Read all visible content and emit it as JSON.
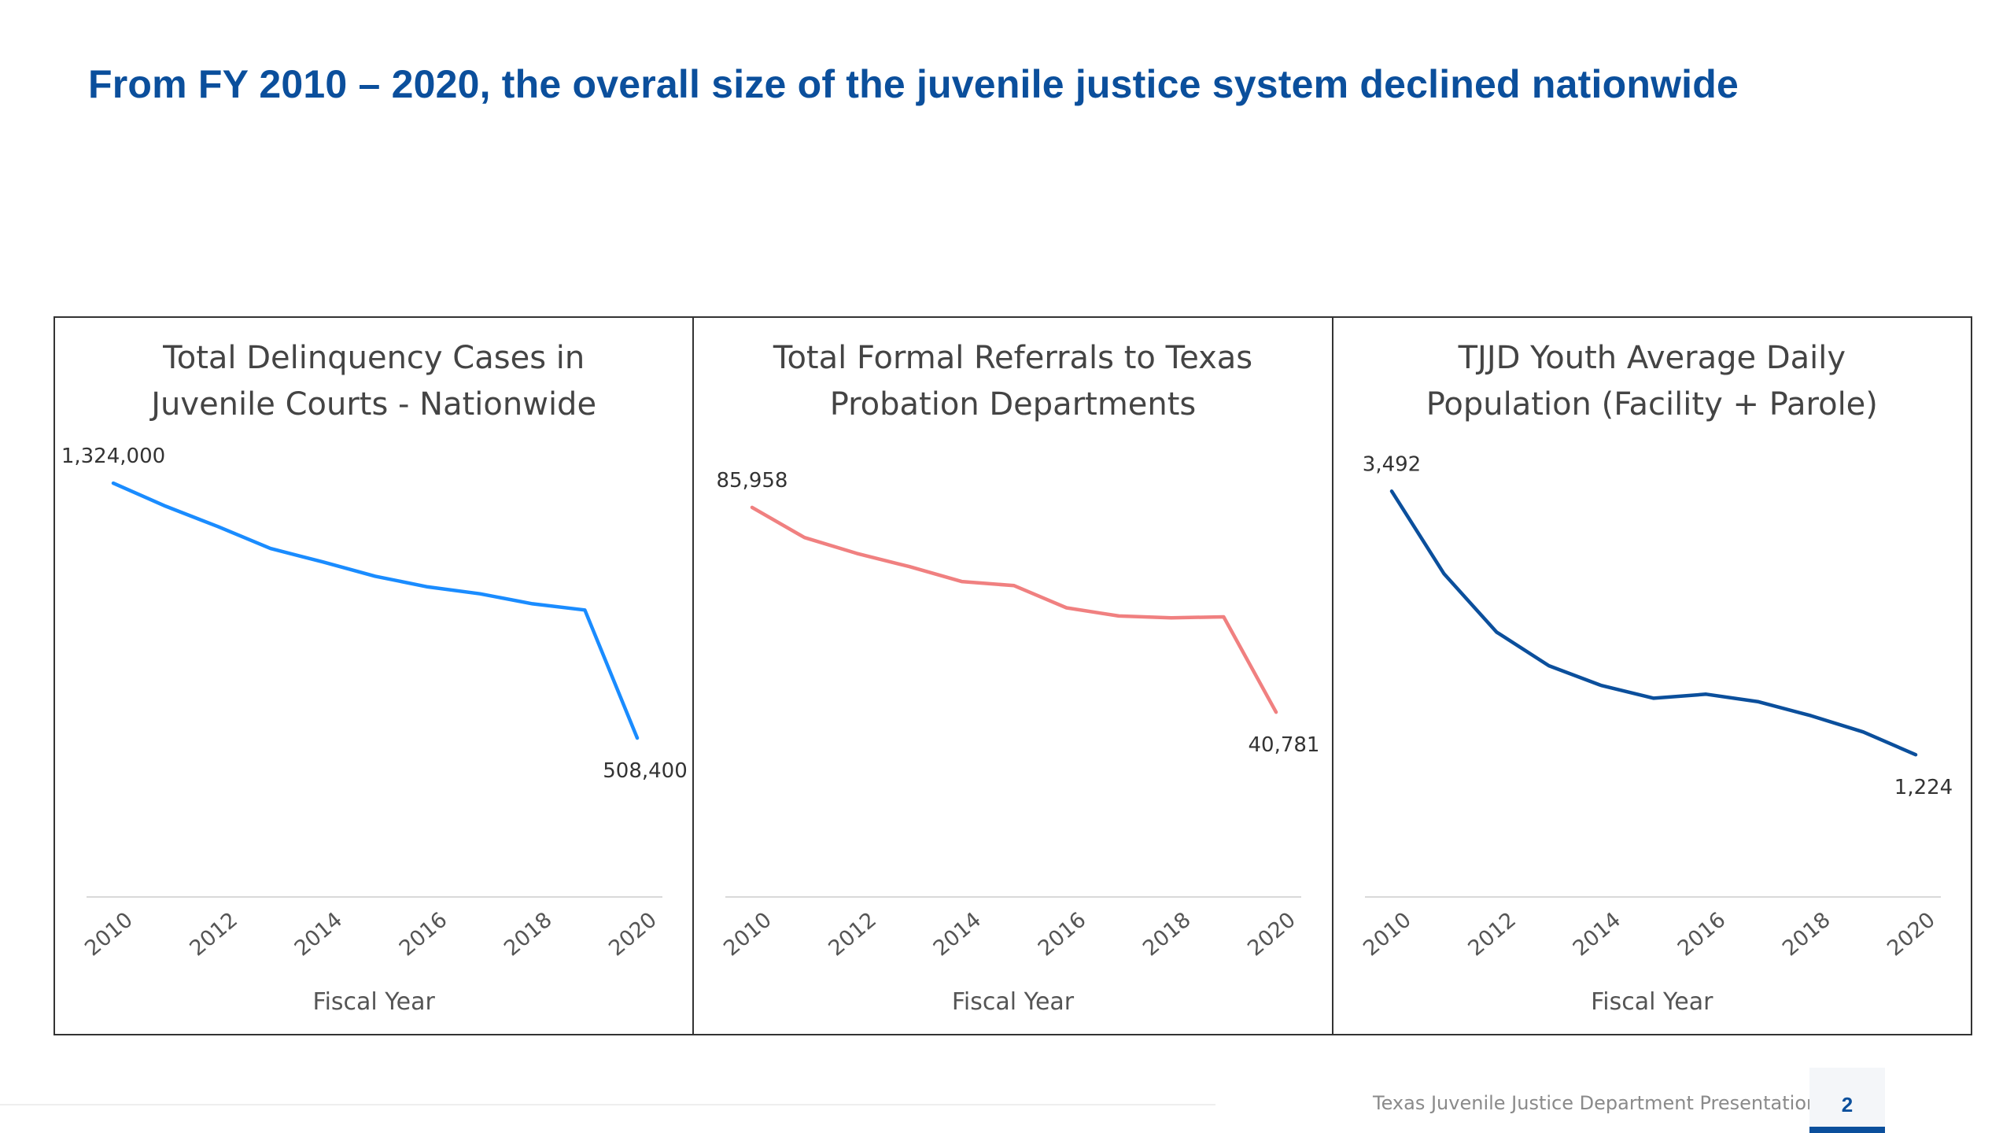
{
  "slide": {
    "title": "From FY 2010 – 2020, the overall size of the juvenile justice system declined nationwide",
    "footer_text": "Texas Juvenile Justice Department Presentation",
    "page_number": "2",
    "title_color": "#0b4f9c"
  },
  "chart_data": [
    {
      "type": "line",
      "title_lines": [
        "Total Delinquency Cases in",
        "Juvenile Courts - Nationwide"
      ],
      "xlabel": "Fiscal Year",
      "ylabel": "",
      "x": [
        2010,
        2011,
        2012,
        2013,
        2014,
        2015,
        2016,
        2017,
        2018,
        2019,
        2020
      ],
      "x_ticks": [
        "2010",
        "2012",
        "2014",
        "2016",
        "2018",
        "2020"
      ],
      "values": [
        1324000,
        1250000,
        1185000,
        1115000,
        1072000,
        1026000,
        992000,
        970000,
        938000,
        918000,
        508400
      ],
      "data_labels": [
        {
          "index": 0,
          "text": "1,324,000"
        },
        {
          "index": 10,
          "text": "508,400"
        }
      ],
      "ylim": [
        0,
        1450000
      ],
      "color": "#1a8cff",
      "grid": false
    },
    {
      "type": "line",
      "title_lines": [
        "Total Formal Referrals to Texas",
        "Probation Departments"
      ],
      "xlabel": "Fiscal Year",
      "ylabel": "",
      "x": [
        2010,
        2011,
        2012,
        2013,
        2014,
        2015,
        2016,
        2017,
        2018,
        2019,
        2020
      ],
      "x_ticks": [
        "2010",
        "2012",
        "2014",
        "2016",
        "2018",
        "2020"
      ],
      "values": [
        85958,
        79300,
        75800,
        72900,
        69600,
        68700,
        63800,
        62000,
        61600,
        61800,
        40781
      ],
      "data_labels": [
        {
          "index": 0,
          "text": "85,958"
        },
        {
          "index": 10,
          "text": "40,781"
        }
      ],
      "ylim": [
        0,
        100000
      ],
      "color": "#f08080",
      "grid": false
    },
    {
      "type": "line",
      "title_lines": [
        "TJJD Youth Average Daily",
        "Population (Facility + Parole)"
      ],
      "xlabel": "Fiscal Year",
      "ylabel": "",
      "x": [
        2010,
        2011,
        2012,
        2013,
        2014,
        2015,
        2016,
        2017,
        2018,
        2019,
        2020
      ],
      "x_ticks": [
        "2010",
        "2012",
        "2014",
        "2016",
        "2018",
        "2020"
      ],
      "values": [
        3492,
        2780,
        2280,
        1990,
        1820,
        1710,
        1745,
        1680,
        1560,
        1420,
        1224
      ],
      "data_labels": [
        {
          "index": 0,
          "text": "3,492"
        },
        {
          "index": 10,
          "text": "1,224"
        }
      ],
      "ylim": [
        0,
        3900
      ],
      "color": "#0b4f9c",
      "grid": false
    }
  ]
}
